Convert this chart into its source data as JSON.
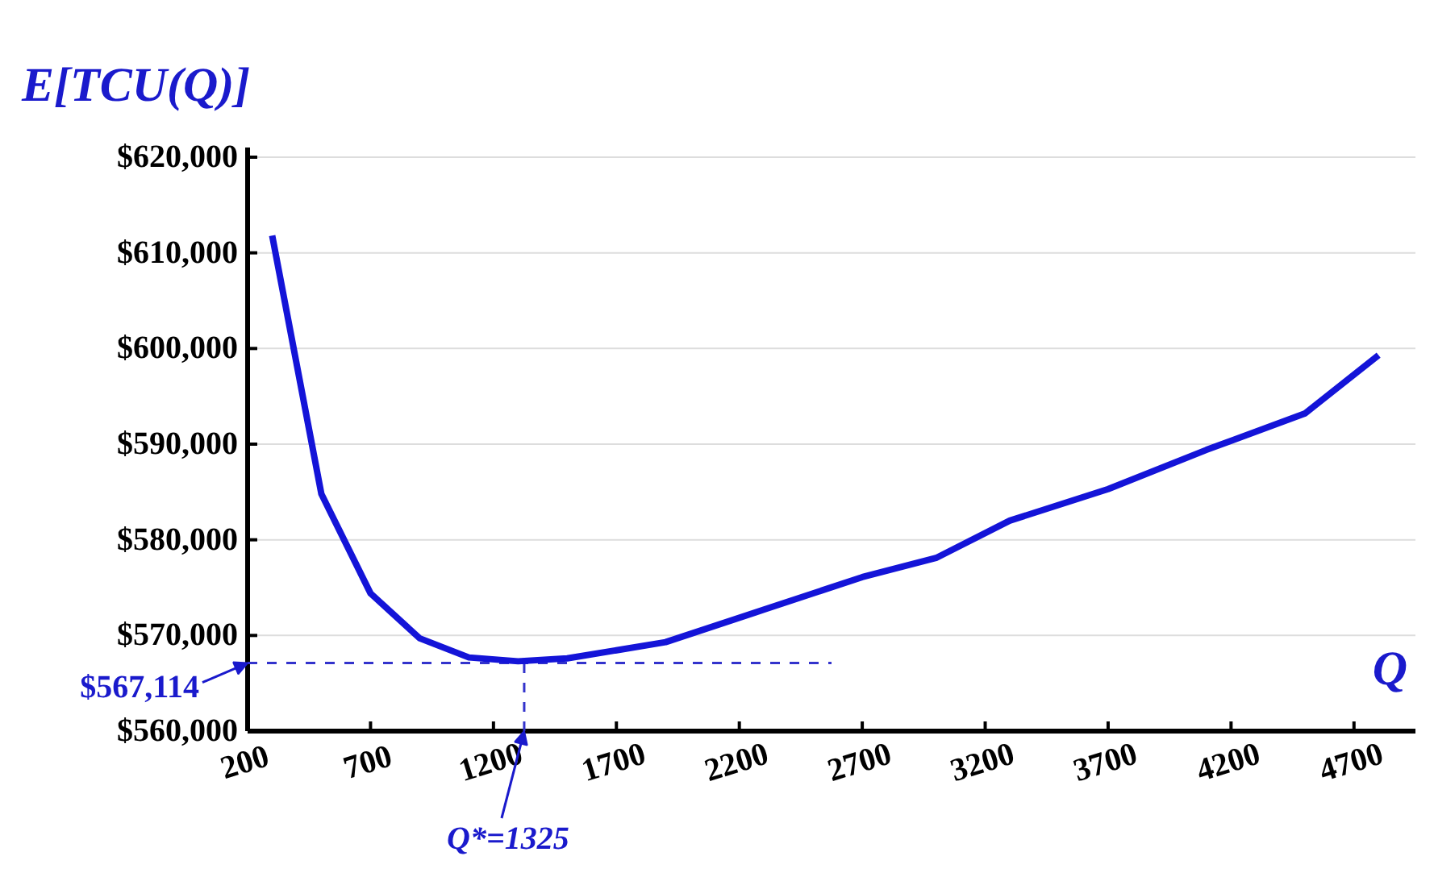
{
  "chart_data": {
    "type": "line",
    "xlabel": "Q",
    "ylabel": "E[TCU(Q)]",
    "x": [
      300,
      500,
      700,
      900,
      1100,
      1300,
      1500,
      1900,
      2300,
      2700,
      3000,
      3300,
      3700,
      4100,
      4500,
      4800
    ],
    "series": [
      {
        "color": "#1414d8",
        "values": [
          611800,
          584800,
          574400,
          569700,
          567700,
          567300,
          567600,
          569300,
          572700,
          576100,
          578100,
          582000,
          585300,
          589400,
          593200,
          599300
        ]
      }
    ],
    "xlim": [
      200,
      4950
    ],
    "ylim": [
      560000,
      620000
    ],
    "xticks": [
      200,
      700,
      1200,
      1700,
      2200,
      2700,
      3200,
      3700,
      4200,
      4700
    ],
    "yticks": [
      {
        "value": 560000,
        "label": "$560,000"
      },
      {
        "value": 570000,
        "label": "$570,000"
      },
      {
        "value": 580000,
        "label": "$580,000"
      },
      {
        "value": 590000,
        "label": "$590,000"
      },
      {
        "value": 600000,
        "label": "$600,000"
      },
      {
        "value": 610000,
        "label": "$610,000"
      },
      {
        "value": 620000,
        "label": "$620,000"
      }
    ],
    "grid": "y",
    "marker": "none",
    "line_style": "solid",
    "ref_lines": [
      {
        "axis": "y",
        "value": 567114,
        "label": "$567,114",
        "color": "#3333cc",
        "line_style": "dashed"
      },
      {
        "axis": "x",
        "value": 1325,
        "label": "Q*=1325",
        "color": "#3333cc",
        "line_style": "dashed"
      }
    ]
  }
}
